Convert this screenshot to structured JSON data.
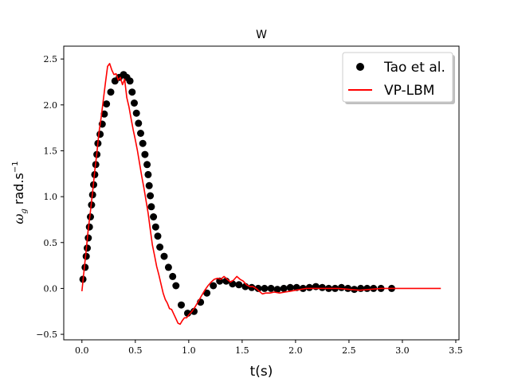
{
  "chart_data": {
    "type": "scatter",
    "title": "W",
    "xlabel": "t(s)",
    "ylabel_symbol": "ω",
    "ylabel_subscript": "g",
    "ylabel_unit": "rad.s",
    "ylabel_exponent": "−1",
    "xlim": [
      -0.17,
      3.53
    ],
    "ylim": [
      -0.56,
      2.64
    ],
    "x_ticks": [
      0.0,
      0.5,
      1.0,
      1.5,
      2.0,
      2.5,
      3.0,
      3.5
    ],
    "x_tick_labels": [
      "0.0",
      "0.5",
      "1.0",
      "1.5",
      "2.0",
      "2.5",
      "3.0",
      "3.5"
    ],
    "y_ticks": [
      -0.5,
      0.0,
      0.5,
      1.0,
      1.5,
      2.0,
      2.5
    ],
    "y_tick_labels": [
      "−0.5",
      "0.0",
      "0.5",
      "1.0",
      "1.5",
      "2.0",
      "2.5"
    ],
    "legend_position": "top-right",
    "series": [
      {
        "name": "Tao et al.",
        "kind": "markers",
        "color": "#000000",
        "x": [
          0.01,
          0.03,
          0.04,
          0.05,
          0.06,
          0.07,
          0.08,
          0.09,
          0.1,
          0.11,
          0.12,
          0.13,
          0.14,
          0.15,
          0.17,
          0.19,
          0.21,
          0.23,
          0.27,
          0.31,
          0.35,
          0.39,
          0.42,
          0.45,
          0.47,
          0.49,
          0.51,
          0.53,
          0.55,
          0.57,
          0.59,
          0.61,
          0.62,
          0.63,
          0.64,
          0.65,
          0.67,
          0.69,
          0.71,
          0.73,
          0.77,
          0.81,
          0.85,
          0.88,
          0.93,
          0.99,
          1.05,
          1.11,
          1.17,
          1.23,
          1.29,
          1.35,
          1.41,
          1.47,
          1.53,
          1.59,
          1.65,
          1.71,
          1.77,
          1.83,
          1.89,
          1.95,
          2.01,
          2.07,
          2.13,
          2.19,
          2.25,
          2.31,
          2.37,
          2.43,
          2.49,
          2.55,
          2.61,
          2.67,
          2.73,
          2.8,
          2.9
        ],
        "y": [
          0.1,
          0.23,
          0.35,
          0.44,
          0.55,
          0.67,
          0.78,
          0.91,
          1.02,
          1.13,
          1.24,
          1.35,
          1.46,
          1.58,
          1.68,
          1.79,
          1.9,
          2.01,
          2.14,
          2.26,
          2.3,
          2.33,
          2.3,
          2.26,
          2.14,
          2.02,
          1.91,
          1.8,
          1.69,
          1.58,
          1.46,
          1.35,
          1.24,
          1.12,
          1.01,
          0.89,
          0.78,
          0.67,
          0.57,
          0.45,
          0.35,
          0.23,
          0.13,
          0.03,
          -0.18,
          -0.27,
          -0.25,
          -0.15,
          -0.05,
          0.03,
          0.08,
          0.08,
          0.05,
          0.04,
          0.02,
          0.01,
          0.0,
          0.0,
          0.0,
          -0.01,
          0.0,
          0.01,
          0.01,
          0.0,
          0.01,
          0.02,
          0.01,
          0.0,
          0.0,
          0.01,
          0.0,
          -0.01,
          0.0,
          0.0,
          0.0,
          0.0,
          0.0
        ]
      },
      {
        "name": "VP-LBM",
        "kind": "line",
        "color": "#ff0000",
        "x": [
          0.0,
          0.02,
          0.04,
          0.06,
          0.08,
          0.1,
          0.12,
          0.14,
          0.16,
          0.18,
          0.2,
          0.22,
          0.24,
          0.26,
          0.28,
          0.3,
          0.32,
          0.34,
          0.36,
          0.38,
          0.4,
          0.42,
          0.44,
          0.46,
          0.48,
          0.5,
          0.52,
          0.54,
          0.56,
          0.58,
          0.6,
          0.62,
          0.64,
          0.66,
          0.68,
          0.7,
          0.72,
          0.74,
          0.76,
          0.78,
          0.8,
          0.82,
          0.84,
          0.86,
          0.88,
          0.9,
          0.92,
          0.94,
          0.96,
          0.98,
          1.0,
          1.03,
          1.06,
          1.09,
          1.12,
          1.15,
          1.18,
          1.21,
          1.24,
          1.27,
          1.3,
          1.33,
          1.36,
          1.39,
          1.42,
          1.45,
          1.48,
          1.51,
          1.54,
          1.57,
          1.6,
          1.63,
          1.66,
          1.69,
          1.72,
          1.76,
          1.8,
          1.85,
          1.9,
          1.95,
          2.0,
          2.1,
          2.2,
          2.3,
          2.4,
          2.5,
          2.6,
          2.7,
          2.8,
          2.9,
          3.0,
          3.1,
          3.2,
          3.36
        ],
        "y": [
          -0.03,
          0.2,
          0.42,
          0.65,
          0.84,
          1.05,
          1.28,
          1.48,
          1.7,
          1.86,
          2.05,
          2.24,
          2.42,
          2.45,
          2.38,
          2.33,
          2.34,
          2.27,
          2.3,
          2.22,
          2.28,
          2.08,
          1.98,
          1.85,
          1.73,
          1.62,
          1.5,
          1.36,
          1.22,
          1.1,
          0.96,
          0.82,
          0.64,
          0.47,
          0.36,
          0.24,
          0.15,
          0.05,
          -0.05,
          -0.12,
          -0.16,
          -0.22,
          -0.23,
          -0.28,
          -0.33,
          -0.38,
          -0.39,
          -0.35,
          -0.32,
          -0.32,
          -0.29,
          -0.25,
          -0.2,
          -0.14,
          -0.08,
          -0.02,
          0.03,
          0.07,
          0.1,
          0.11,
          0.1,
          0.13,
          0.1,
          0.07,
          0.09,
          0.13,
          0.1,
          0.08,
          0.04,
          0.02,
          0.02,
          0.0,
          -0.03,
          -0.06,
          -0.05,
          -0.05,
          -0.04,
          -0.05,
          -0.04,
          -0.03,
          -0.02,
          0.0,
          0.0,
          0.0,
          0.0,
          -0.01,
          -0.02,
          -0.01,
          0.0,
          0.0,
          0.0,
          0.0,
          0.0,
          0.0
        ]
      }
    ]
  }
}
